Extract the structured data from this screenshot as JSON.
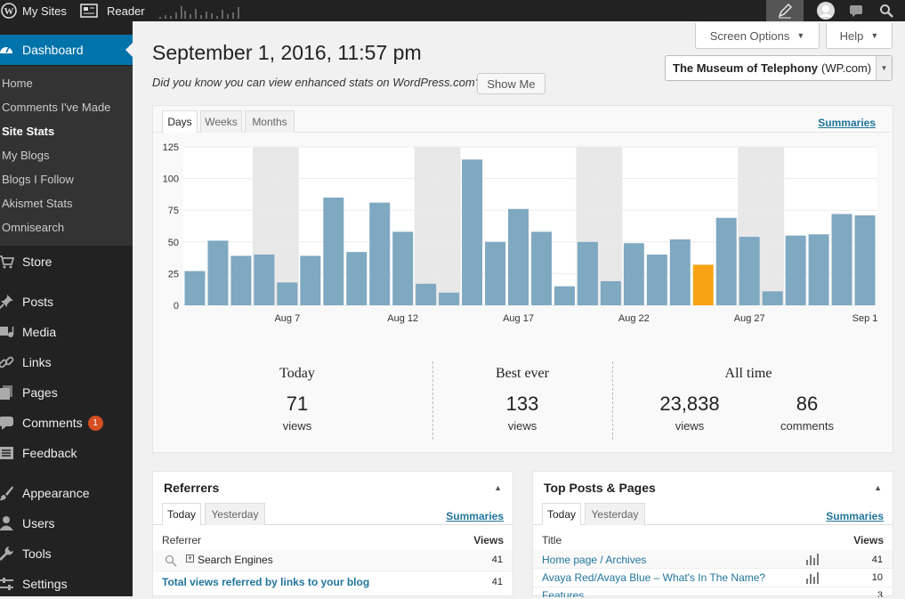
{
  "adminbar": {
    "my_sites": "My Sites",
    "reader": "Reader"
  },
  "sidebar": {
    "dashboard": "Dashboard",
    "sub": [
      "Home",
      "Comments I've Made",
      "Site Stats",
      "My Blogs",
      "Blogs I Follow",
      "Akismet Stats",
      "Omnisearch"
    ],
    "items": [
      {
        "label": "Store",
        "icon": "cart-icon"
      },
      {
        "label": "Posts",
        "icon": "pin-icon"
      },
      {
        "label": "Media",
        "icon": "media-icon"
      },
      {
        "label": "Links",
        "icon": "link-icon"
      },
      {
        "label": "Pages",
        "icon": "pages-icon"
      },
      {
        "label": "Comments",
        "icon": "comment-icon"
      },
      {
        "label": "Feedback",
        "icon": "feedback-icon"
      },
      {
        "label": "Appearance",
        "icon": "brush-icon"
      },
      {
        "label": "Users",
        "icon": "user-icon"
      },
      {
        "label": "Tools",
        "icon": "wrench-icon"
      },
      {
        "label": "Settings",
        "icon": "settings-icon"
      }
    ],
    "comments_badge": "1"
  },
  "header": {
    "screen_options": "Screen Options",
    "help": "Help",
    "date": "September 1, 2016, 11:57 pm",
    "hint": "Did you know you can view enhanced stats on WordPress.com?",
    "show_me": "Show Me",
    "site_select": "The Museum of Telephony",
    "site_suffix": "(WP.com)"
  },
  "stats": {
    "tabs": [
      "Days",
      "Weeks",
      "Months"
    ],
    "summaries": "Summaries",
    "today_label": "Today",
    "today_value": "71",
    "today_unit": "views",
    "best_label": "Best ever",
    "best_value": "133",
    "best_unit": "views",
    "all_label": "All time",
    "all_views": "23,838",
    "all_views_unit": "views",
    "all_comments": "86",
    "all_comments_unit": "comments"
  },
  "chart_data": {
    "type": "bar",
    "categories": [
      "Aug 3",
      "Aug 4",
      "Aug 5",
      "Aug 6",
      "Aug 7",
      "Aug 8",
      "Aug 9",
      "Aug 10",
      "Aug 11",
      "Aug 12",
      "Aug 13",
      "Aug 14",
      "Aug 15",
      "Aug 16",
      "Aug 17",
      "Aug 18",
      "Aug 19",
      "Aug 20",
      "Aug 21",
      "Aug 22",
      "Aug 23",
      "Aug 24",
      "Aug 25",
      "Aug 26",
      "Aug 27",
      "Aug 28",
      "Aug 29",
      "Aug 30",
      "Aug 31",
      "Sep 1"
    ],
    "x_tick_labels": [
      "Aug 7",
      "Aug 12",
      "Aug 17",
      "Aug 22",
      "Aug 27",
      "Sep 1"
    ],
    "values": [
      27,
      51,
      39,
      40,
      18,
      39,
      85,
      42,
      81,
      58,
      17,
      10,
      115,
      50,
      76,
      58,
      15,
      50,
      19,
      49,
      40,
      52,
      32,
      69,
      54,
      11,
      55,
      56,
      72,
      71
    ],
    "highlight_index": 22,
    "weekend_indices": [
      3,
      4,
      10,
      11,
      17,
      18,
      24,
      25
    ],
    "y_ticks": [
      0,
      25,
      50,
      75,
      100,
      125
    ],
    "ylim": [
      0,
      125
    ],
    "colors": {
      "bar": "#7fa8c1",
      "highlight": "#f7a414",
      "weekend": "#e8e8e8"
    }
  },
  "referrers": {
    "title": "Referrers",
    "tabs": [
      "Today",
      "Yesterday"
    ],
    "summaries": "Summaries",
    "col_referrer": "Referrer",
    "col_views": "Views",
    "rows": [
      {
        "label": "Search Engines",
        "views": "41"
      }
    ],
    "total_label": "Total views referred by links to your blog",
    "total_views": "41"
  },
  "top_posts": {
    "title": "Top Posts & Pages",
    "tabs": [
      "Today",
      "Yesterday"
    ],
    "summaries": "Summaries",
    "col_title": "Title",
    "col_views": "Views",
    "rows": [
      {
        "label": "Home page / Archives",
        "views": "41"
      },
      {
        "label": "Avaya Red/Avaya Blue – What's In The Name?",
        "views": "10"
      },
      {
        "label": "Features",
        "views": "3"
      }
    ]
  }
}
